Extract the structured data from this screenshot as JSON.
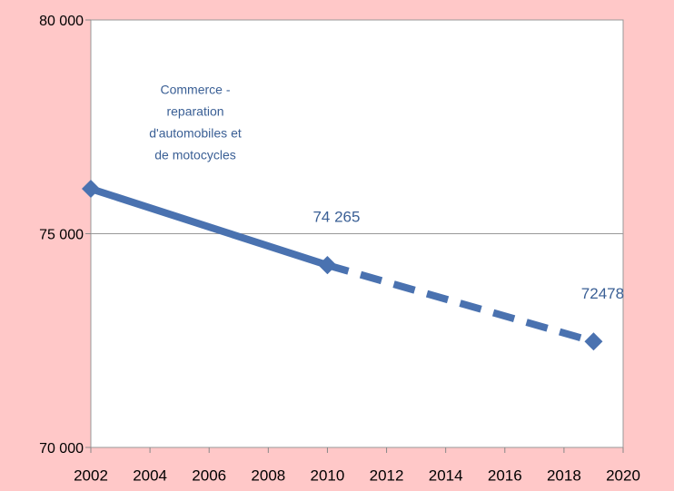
{
  "chart_data": {
    "type": "line",
    "annotation": [
      "Commerce -",
      "reparation",
      "d'automobiles et",
      "de motocycles"
    ],
    "series": [
      {
        "color": "#4a72b0",
        "dash": false,
        "x": [
          2002,
          2010
        ],
        "values": [
          76050,
          74265
        ],
        "value_labels": [
          null,
          "74 265"
        ]
      },
      {
        "color": "#4a72b0",
        "dash": true,
        "x": [
          2010,
          2019
        ],
        "values": [
          74265,
          72478
        ],
        "value_labels": [
          null,
          "72478"
        ]
      }
    ],
    "xlim": [
      2002,
      2020
    ],
    "xticks": [
      2002,
      2004,
      2006,
      2008,
      2010,
      2012,
      2014,
      2016,
      2018,
      2020
    ],
    "ylim": [
      70000,
      80000
    ],
    "yticks": [
      {
        "value": 70000,
        "label": "70 000"
      },
      {
        "value": 75000,
        "label": "75 000"
      },
      {
        "value": 80000,
        "label": "80 000"
      }
    ],
    "grid": true
  }
}
